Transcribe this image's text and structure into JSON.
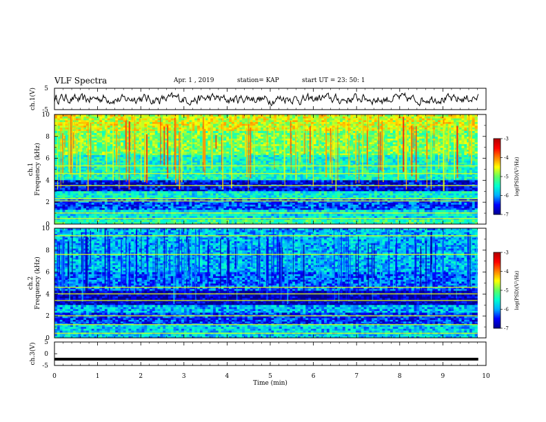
{
  "header": {
    "title": "VLF Spectra",
    "date": "Apr. 1 , 2019",
    "station": "station= KAP",
    "start": "start UT =  23: 50: 1"
  },
  "colors": {
    "cmap": [
      "#000090",
      "#0000ff",
      "#00b0ff",
      "#00ffd0",
      "#60ff60",
      "#ffff00",
      "#ff8000",
      "#ff0000",
      "#b00000"
    ]
  },
  "chart_data": [
    {
      "type": "line",
      "panel": "ch1-waveform",
      "ylabel": "ch.1(V)",
      "ylim": [
        -5,
        5
      ],
      "yticks": [
        "5",
        "-5"
      ],
      "xlim": [
        0,
        10
      ],
      "x_unit": "min",
      "approx_level": 0,
      "approx_amplitude": 1.6
    },
    {
      "type": "heatmap",
      "panel": "ch1-spectrogram",
      "ylabel": "ch.1",
      "ylabel2": "Frequency (kHz)",
      "ylim": [
        0,
        10
      ],
      "yticks": [
        "10",
        "8",
        "6",
        "4",
        "2",
        "0"
      ],
      "xlim": [
        0,
        9.8
      ],
      "colorbar": {
        "label": "log(PSD)(V²/Hz)",
        "range": [
          -7,
          -3
        ],
        "ticks": [
          "-3",
          "-4",
          "-5",
          "-6",
          "-7"
        ]
      },
      "bands_kHz": [
        {
          "from": 8.5,
          "to": 10,
          "level": -4.6
        },
        {
          "from": 6.3,
          "to": 8.5,
          "level": -5.0
        },
        {
          "from": 4.0,
          "to": 6.3,
          "level": -5.5
        },
        {
          "from": 3.0,
          "to": 4.0,
          "level": -6.6
        },
        {
          "from": 2.3,
          "to": 3.0,
          "level": -5.6
        },
        {
          "from": 1.3,
          "to": 2.3,
          "level": -6.3
        },
        {
          "from": 0.4,
          "to": 1.3,
          "level": -5.7
        },
        {
          "from": 0.0,
          "to": 0.4,
          "level": -5.3
        }
      ],
      "lines_kHz": [
        5.3,
        4.6,
        3.5,
        2.3,
        2.1,
        1.0,
        0.5
      ]
    },
    {
      "type": "heatmap",
      "panel": "ch2-spectrogram",
      "ylabel": "ch.2",
      "ylabel2": "Frequency (kHz)",
      "ylim": [
        0,
        10
      ],
      "yticks": [
        "10",
        "8",
        "6",
        "4",
        "2",
        "0"
      ],
      "xlim": [
        0,
        9.8
      ],
      "colorbar": {
        "label": "log(PSD)(V²/Hz)",
        "range": [
          -7,
          -3
        ],
        "ticks": [
          "-3",
          "-4",
          "-5",
          "-6",
          "-7"
        ]
      },
      "bands_kHz": [
        {
          "from": 6.0,
          "to": 10,
          "level": -5.9
        },
        {
          "from": 4.3,
          "to": 6.0,
          "level": -6.2
        },
        {
          "from": 3.0,
          "to": 4.3,
          "level": -6.8
        },
        {
          "from": 2.3,
          "to": 3.0,
          "level": -5.9
        },
        {
          "from": 1.2,
          "to": 2.3,
          "level": -6.4
        },
        {
          "from": 0.0,
          "to": 1.2,
          "level": -5.8
        }
      ],
      "lines_kHz": [
        9.3,
        7.6,
        4.6,
        4.0,
        3.4,
        2.0,
        1.2,
        0.4
      ]
    },
    {
      "type": "line",
      "panel": "ch3-waveform",
      "ylabel": "ch.3(V)",
      "ylim": [
        -5,
        5
      ],
      "yticks": [
        "5",
        "0",
        "-5"
      ],
      "xlim": [
        0,
        10
      ],
      "xlabel": "Time (min)",
      "xticks": [
        "0",
        "1",
        "2",
        "3",
        "4",
        "5",
        "6",
        "7",
        "8",
        "9",
        "10"
      ],
      "approx_level": -2.3
    }
  ]
}
